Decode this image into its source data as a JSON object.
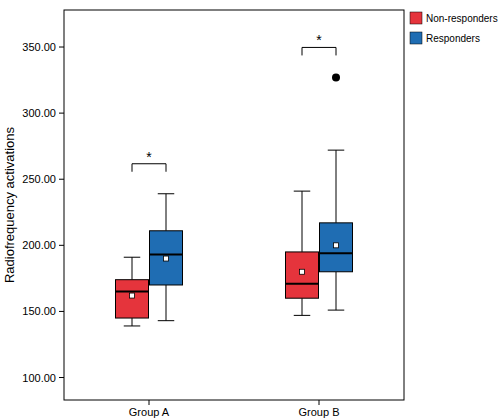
{
  "chart_data": {
    "type": "box",
    "y_label": "Radiofrequency activations",
    "categories": [
      "Group A",
      "Group B"
    ],
    "ylim": [
      83,
      378
    ],
    "yticks": [
      {
        "value": 100,
        "label": "100.00"
      },
      {
        "value": 150,
        "label": "150.00"
      },
      {
        "value": 200,
        "label": "200.00"
      },
      {
        "value": 250,
        "label": "250.00"
      },
      {
        "value": 300,
        "label": "300.00"
      },
      {
        "value": 350,
        "label": "350.00"
      }
    ],
    "grid": false,
    "legend": "top-right",
    "annotations": [
      "*",
      "*"
    ],
    "series": [
      {
        "name": "Non-responders",
        "color": "#e5343c",
        "values": [
          {
            "min": 139,
            "q1": 145,
            "median": 165,
            "q3": 174,
            "max": 191,
            "mean": 162,
            "outliers": []
          },
          {
            "min": 147,
            "q1": 160,
            "median": 171,
            "q3": 195,
            "max": 241,
            "mean": 180,
            "outliers": []
          }
        ]
      },
      {
        "name": "Responders",
        "color": "#1f6db3",
        "values": [
          {
            "min": 143,
            "q1": 170,
            "median": 193,
            "q3": 211,
            "max": 239,
            "mean": 190,
            "outliers": []
          },
          {
            "min": 151,
            "q1": 180,
            "median": 194,
            "q3": 217,
            "max": 272,
            "mean": 200,
            "outliers": [
              327
            ]
          }
        ]
      }
    ]
  }
}
